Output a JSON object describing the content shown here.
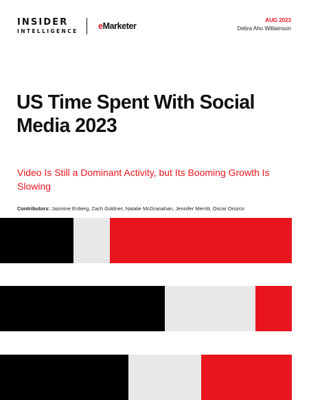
{
  "brand": {
    "logo_primary_line1": "INSIDER",
    "logo_primary_line2": "INTELLIGENCE",
    "logo_secondary_e": "e",
    "logo_secondary_rest": "Marketer"
  },
  "report": {
    "date": "AUG 2023",
    "author": "Debra Aho Williamson",
    "title": "US Time Spent With Social Media 2023",
    "subtitle": "Video Is Still a Dominant Activity, but Its Booming Growth Is Slowing",
    "contributors_label": "Contributors:",
    "contributors": "Jasmine Enberg, Zach Goldner, Natalie McGranahan, Jennifer Merritt, Oscar Orozco"
  },
  "colors": {
    "accent_red": "#e8151f",
    "black": "#000000",
    "light_grey": "#e8e8e8"
  },
  "decorative_bars": [
    {
      "segments": [
        {
          "color": "black",
          "share": 0.252
        },
        {
          "color": "grey",
          "share": 0.124
        },
        {
          "color": "red",
          "share": 0.624
        }
      ]
    },
    {
      "segments": [
        {
          "color": "black",
          "share": 0.565
        },
        {
          "color": "grey",
          "share": 0.311
        },
        {
          "color": "red",
          "share": 0.124
        }
      ]
    },
    {
      "segments": [
        {
          "color": "black",
          "share": 0.44
        },
        {
          "color": "grey",
          "share": 0.249
        },
        {
          "color": "red",
          "share": 0.311
        }
      ]
    }
  ]
}
